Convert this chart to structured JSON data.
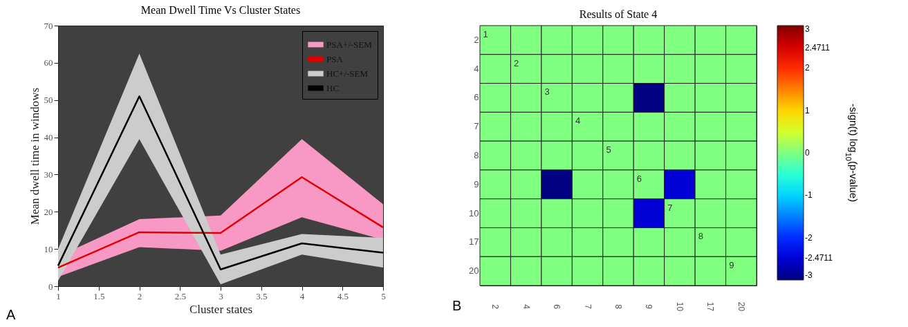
{
  "chart_data": [
    {
      "type": "line",
      "title": "Mean Dwell Time Vs Cluster States",
      "xlabel": "Cluster states",
      "ylabel": "Mean dwell time in windows",
      "x": [
        1,
        2,
        3,
        4,
        5
      ],
      "series": [
        {
          "name": "PSA+/-SEM",
          "type": "area",
          "color": "#f799c4",
          "values": [
            null,
            null,
            null,
            null,
            null
          ],
          "lower": [
            2.5,
            10.5,
            9.5,
            18.5,
            12.5
          ],
          "upper": [
            8,
            18,
            19,
            39.5,
            22
          ]
        },
        {
          "name": "PSA",
          "type": "line",
          "color": "#e00000",
          "values": [
            5,
            14.5,
            14.3,
            29.3,
            15.8
          ]
        },
        {
          "name": "HC+/-SEM",
          "type": "area",
          "color": "#cccccc",
          "values": [
            null,
            null,
            null,
            null,
            null
          ],
          "lower": [
            1.5,
            39.5,
            0.5,
            8.5,
            5
          ],
          "upper": [
            10,
            62.5,
            8.5,
            14,
            13
          ]
        },
        {
          "name": "HC",
          "type": "line",
          "color": "#000000",
          "values": [
            5.5,
            51,
            4.5,
            11.5,
            9
          ]
        }
      ],
      "xlim": [
        1,
        5
      ],
      "xticks": [
        1,
        1.5,
        2,
        2.5,
        3,
        3.5,
        4,
        4.5,
        5
      ],
      "ylim": [
        0,
        70
      ],
      "yticks": [
        0,
        10,
        20,
        30,
        40,
        50,
        60,
        70
      ],
      "grid": false,
      "legend": "top right",
      "annotations": [
        "A"
      ]
    },
    {
      "type": "heatmap",
      "title": "Results of State 4",
      "clabel": "-sign(t) log$_{10}$(p-value)",
      "categories": [
        "2",
        "4",
        "6",
        "7",
        "8",
        "9",
        "10",
        "17",
        "20"
      ],
      "y_categories": [
        "2",
        "4",
        "6",
        "7",
        "8",
        "9",
        "10",
        "17",
        "20"
      ],
      "cells": [
        [
          0,
          0,
          0,
          0,
          0,
          0,
          0,
          0,
          0
        ],
        [
          0,
          0,
          0,
          0,
          0,
          0,
          0,
          0,
          0
        ],
        [
          0,
          0,
          0,
          0,
          0,
          -3,
          0,
          0,
          0
        ],
        [
          0,
          0,
          0,
          0,
          0,
          0,
          0,
          0,
          0
        ],
        [
          0,
          0,
          0,
          0,
          0,
          0,
          0,
          0,
          0
        ],
        [
          0,
          0,
          -3,
          0,
          0,
          0,
          -2.5,
          0,
          0
        ],
        [
          0,
          0,
          0,
          0,
          0,
          -2.5,
          0,
          0,
          0
        ],
        [
          0,
          0,
          0,
          0,
          0,
          0,
          0,
          0,
          0
        ],
        [
          0,
          0,
          0,
          0,
          0,
          0,
          0,
          0,
          0
        ]
      ],
      "clim": [
        -3,
        3
      ],
      "cticks": [
        -3,
        -2.4711,
        -2,
        -1,
        0,
        1,
        2,
        2.4711,
        3
      ],
      "annotations": [
        "B",
        "1",
        "2",
        "3",
        "4",
        "5",
        "6",
        "7",
        "8",
        "9"
      ]
    }
  ]
}
